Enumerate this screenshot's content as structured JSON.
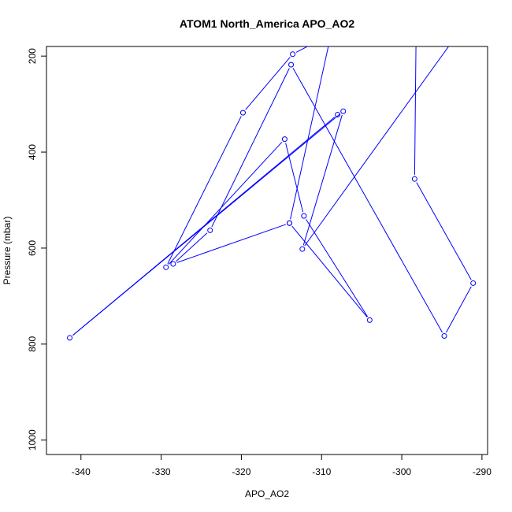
{
  "chart_data": {
    "type": "line",
    "title": "ATOM1 North_America APO_AO2",
    "xlabel": "APO_AO2",
    "ylabel": "Pressure (mbar)",
    "xlim": [
      -344.3,
      -289.3
    ],
    "ylim": [
      1030,
      180
    ],
    "y_reversed": true,
    "x_ticks": [
      -340,
      -330,
      -320,
      -310,
      -300,
      -290
    ],
    "y_ticks": [
      200,
      400,
      600,
      800,
      1000
    ],
    "grid": false,
    "line_color": "#0000ff",
    "series": [
      {
        "points": [
          {
            "x": -298.2,
            "y": 130
          },
          {
            "x": -298.4,
            "y": 456
          },
          {
            "x": -291.1,
            "y": 673
          },
          {
            "x": -294.7,
            "y": 783
          },
          {
            "x": -313.8,
            "y": 218
          },
          {
            "x": -323.9,
            "y": 563
          },
          {
            "x": -328.5,
            "y": 633
          },
          {
            "x": -314.0,
            "y": 548
          },
          {
            "x": -304.0,
            "y": 750
          },
          {
            "x": -312.2,
            "y": 533
          },
          {
            "x": -314.6,
            "y": 373
          },
          {
            "x": -329.4,
            "y": 640
          },
          {
            "x": -319.8,
            "y": 318
          },
          {
            "x": -313.6,
            "y": 196
          },
          {
            "x": -306.0,
            "y": 130
          }
        ]
      },
      {
        "points": [
          {
            "x": -308.5,
            "y": 130
          },
          {
            "x": -314.0,
            "y": 548
          }
        ]
      },
      {
        "points": [
          {
            "x": -292.0,
            "y": 130
          },
          {
            "x": -312.4,
            "y": 602
          },
          {
            "x": -307.3,
            "y": 315
          },
          {
            "x": -341.4,
            "y": 787
          },
          {
            "x": -308.0,
            "y": 322
          }
        ]
      }
    ]
  }
}
